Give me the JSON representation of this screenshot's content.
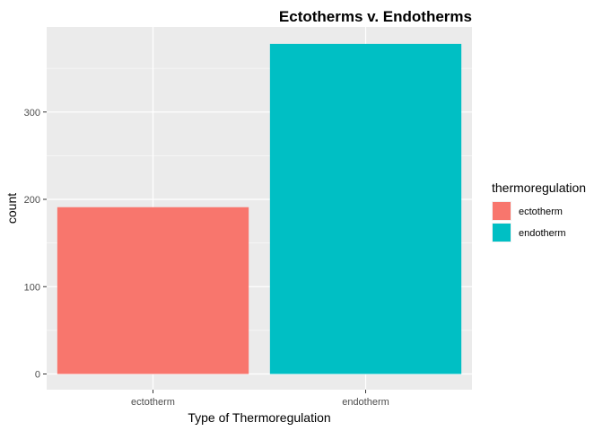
{
  "chart_data": {
    "type": "bar",
    "title": "Ectotherms v. Endotherms",
    "xlabel": "Type of Thermoregulation",
    "ylabel": "count",
    "categories": [
      "ectotherm",
      "endotherm"
    ],
    "values": [
      191,
      378
    ],
    "colors": [
      "#F8766D",
      "#00BFC4"
    ],
    "ylim": [
      0,
      397
    ],
    "yticks": [
      0,
      100,
      200,
      300
    ],
    "grid": true,
    "panel_background": "#EBEBEB",
    "legend": {
      "title": "thermoregulation",
      "position": "right",
      "entries": [
        "ectotherm",
        "endotherm"
      ]
    }
  }
}
